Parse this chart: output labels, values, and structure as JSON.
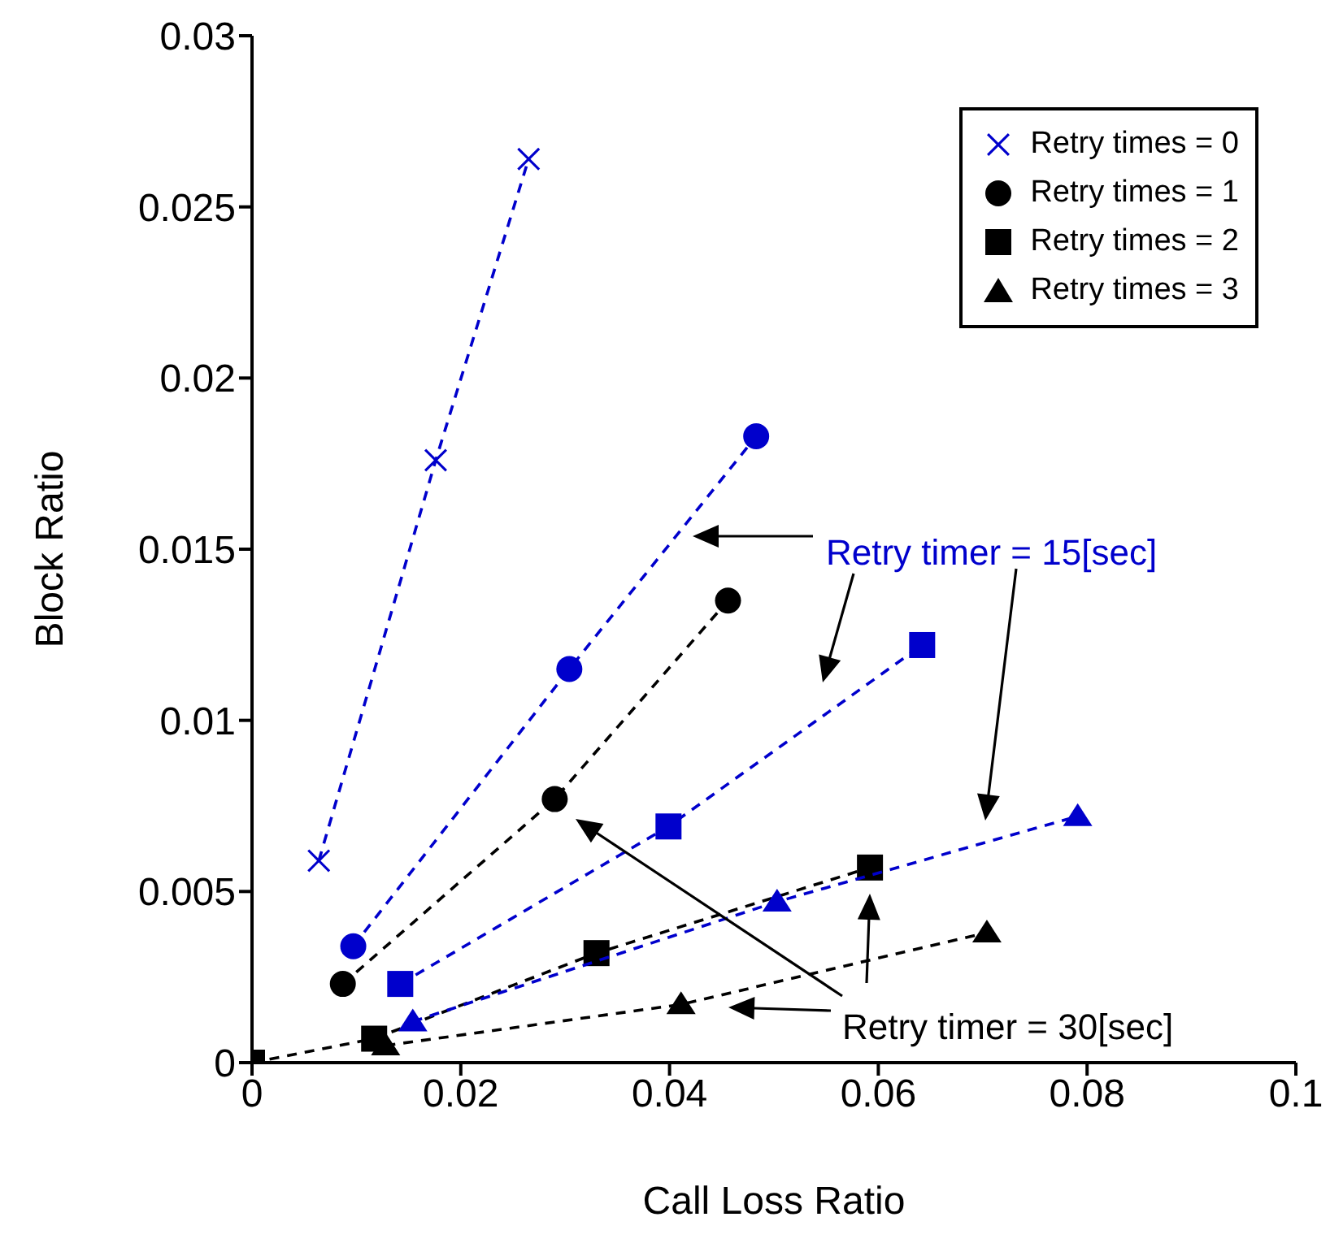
{
  "chart_data": {
    "type": "line",
    "xlabel": "Call Loss Ratio",
    "ylabel": "Block Ratio",
    "xlim": [
      0,
      0.1
    ],
    "ylim": [
      0,
      0.03
    ],
    "xticks": [
      0,
      0.02,
      0.04,
      0.06,
      0.08,
      0.1
    ],
    "yticks": [
      0,
      0.005,
      0.01,
      0.015,
      0.02,
      0.025,
      0.03
    ],
    "grid": false,
    "legend": "top right",
    "line_style": "dashed",
    "series": [
      {
        "name": "Retry times = 0",
        "color": "#0000cc",
        "marker": "cross",
        "x": [
          0.0064,
          0.0176,
          0.0265
        ],
        "values": [
          0.0059,
          0.0176,
          0.0264
        ]
      },
      {
        "name": "Retry times = 1",
        "color": "#000000",
        "marker": "circle",
        "x": [
          0.0087,
          0.029,
          0.0456
        ],
        "values": [
          0.0023,
          0.0077,
          0.0135
        ]
      },
      {
        "name": "Retry times = 2",
        "color": "#000000",
        "marker": "square",
        "x": [
          0,
          0.0117,
          0.033,
          0.0592
        ],
        "values": [
          0,
          0.0007,
          0.0032,
          0.0057
        ]
      },
      {
        "name": "Retry times = 3",
        "color": "#000000",
        "marker": "triangle",
        "x": [
          0.0128,
          0.0411,
          0.0704
        ],
        "values": [
          0.0005,
          0.0017,
          0.0038
        ]
      },
      {
        "color": "#0000cc",
        "marker": "circle",
        "x": [
          0.0097,
          0.0304,
          0.0483
        ],
        "values": [
          0.0034,
          0.0115,
          0.0183
        ]
      },
      {
        "color": "#0000cc",
        "marker": "square",
        "x": [
          0.0142,
          0.0399,
          0.0642
        ],
        "values": [
          0.0023,
          0.0069,
          0.0122
        ]
      },
      {
        "color": "#0000cc",
        "marker": "triangle",
        "x": [
          0.0154,
          0.0503,
          0.0791
        ],
        "values": [
          0.0012,
          0.0047,
          0.0072
        ]
      }
    ],
    "annotations": [
      "Retry timer = 15[sec]",
      "Retry timer = 30[sec]"
    ]
  }
}
